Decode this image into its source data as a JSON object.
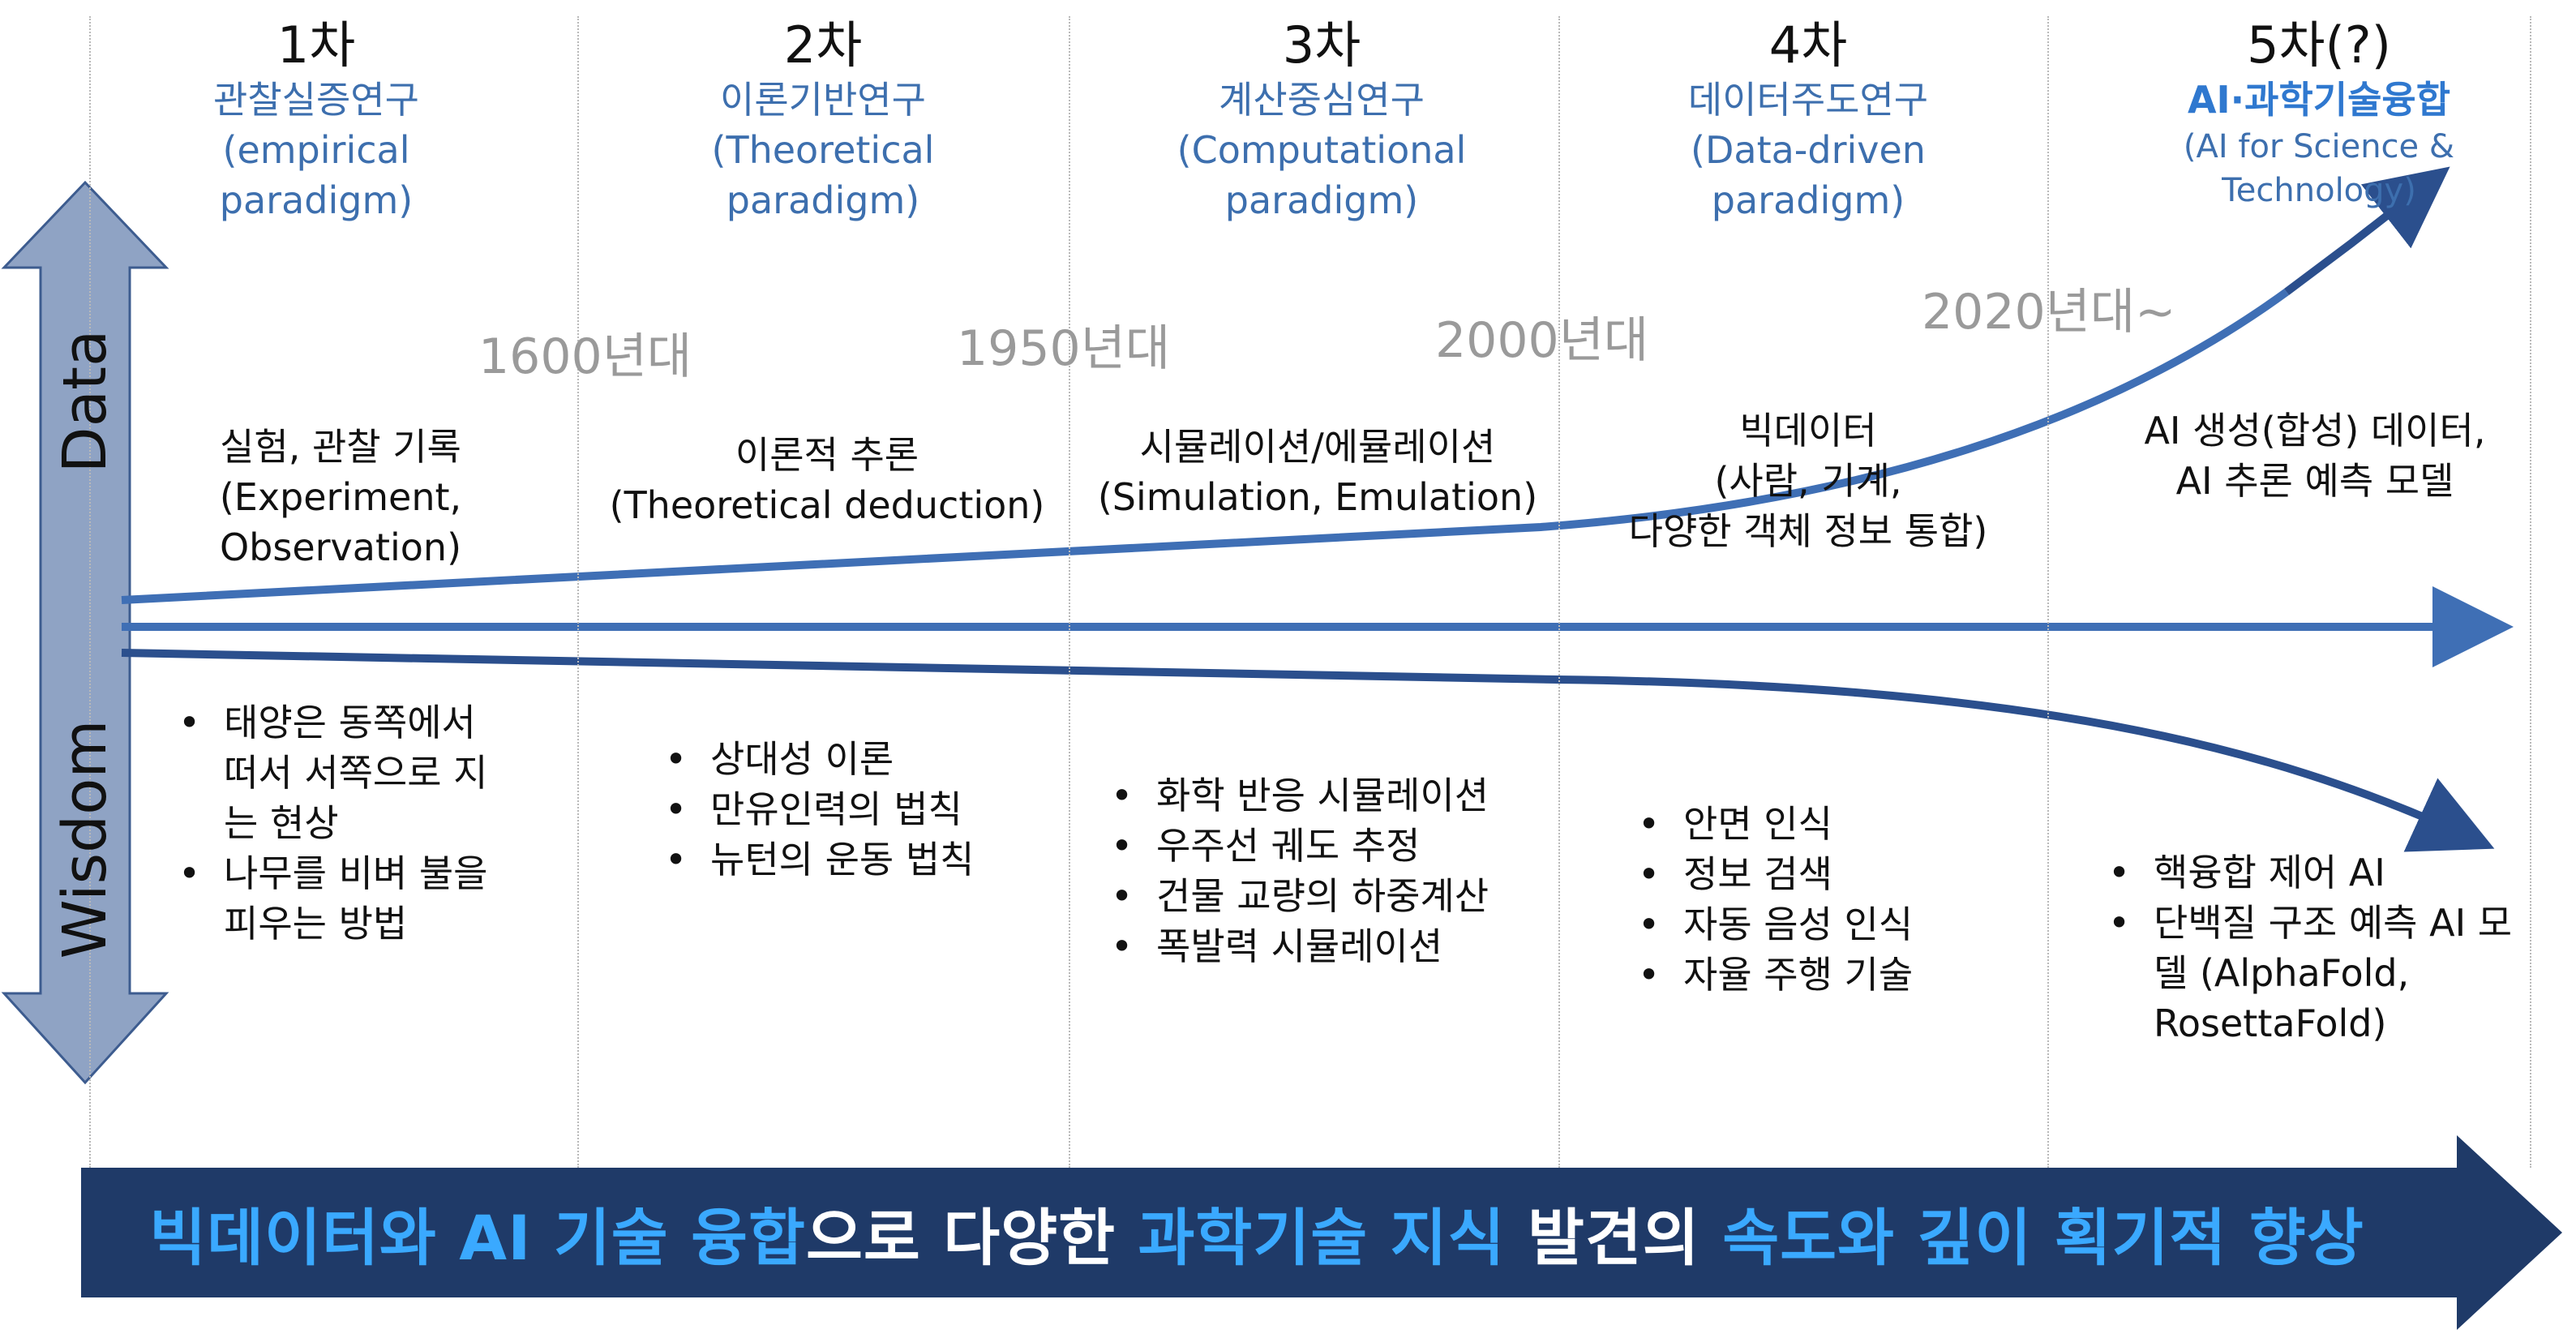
{
  "axis": {
    "top_label": "Data",
    "bottom_label": "Wisdom"
  },
  "eras": [
    {
      "number": "1차",
      "name_ko": "관찰실증연구",
      "name_en_1": "(empirical",
      "name_en_2": "paradigm)"
    },
    {
      "number": "2차",
      "name_ko": "이론기반연구",
      "name_en_1": "(Theoretical",
      "name_en_2": "paradigm)"
    },
    {
      "number": "3차",
      "name_ko": "계산중심연구",
      "name_en_1": "(Computational",
      "name_en_2": "paradigm)"
    },
    {
      "number": "4차",
      "name_ko": "데이터주도연구",
      "name_en_1": "(Data-driven",
      "name_en_2": "paradigm)"
    },
    {
      "number": "5차(?)",
      "name_ko": "AI·과학기술융합",
      "name_en_1": "(AI for Science &",
      "name_en_2": "Technology)"
    }
  ],
  "years": [
    "1600년대",
    "1950년대",
    "2000년대",
    "2020년대~"
  ],
  "methods": [
    [
      "실험, 관찰 기록",
      "(Experiment,",
      "Observation)"
    ],
    [
      "이론적 추론",
      "(Theoretical deduction)"
    ],
    [
      "시뮬레이션/에뮬레이션",
      "(Simulation, Emulation)"
    ],
    [
      "빅데이터",
      "(사람, 기계,",
      "다양한 객체 정보 통합)"
    ],
    [
      "AI 생성(합성) 데이터,",
      "AI 추론 예측 모델"
    ]
  ],
  "examples": [
    [
      "태양은 동쪽에서 떠서 서쪽으로 지는 현상",
      "나무를 비벼 불을 피우는 방법"
    ],
    [
      "상대성 이론",
      "만유인력의 법칙",
      "뉴턴의 운동 법칙"
    ],
    [
      "화학 반응 시뮬레이션",
      "우주선 궤도 추정",
      "건물 교량의 하중계산",
      "폭발력 시뮬레이션"
    ],
    [
      "안면 인식",
      "정보 검색",
      "자동 음성 인식",
      "자율 주행 기술"
    ],
    [
      "핵융합 제어 AI",
      "단백질 구조 예측 AI 모델 (AlphaFold, RosettaFold)"
    ]
  ],
  "banner": {
    "p1": "빅데이터와 AI 기술 융합",
    "p2": "으로 다양한 ",
    "p3": "과학기술 지식",
    "p4": " 발견의 ",
    "p5": "속도와 깊이 획기적 향상"
  },
  "colors": {
    "accent_blue": "#3d6fae",
    "ai_blue": "#2f78cf",
    "banner_bg": "#1f3a68",
    "banner_highlight": "#3aa9ff",
    "axis_arrow": "#8fa3c4"
  }
}
